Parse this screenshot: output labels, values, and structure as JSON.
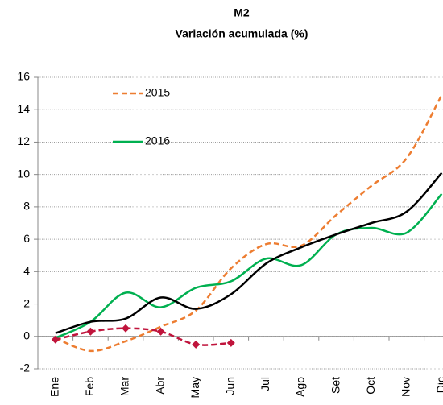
{
  "chart_data": {
    "type": "line",
    "title": "M2",
    "subtitle": "Variación acumulada (%)",
    "categories": [
      "Ene",
      "Feb",
      "Mar",
      "Abr",
      "May",
      "Jun",
      "Jul",
      "Ago",
      "Set",
      "Oct",
      "Nov",
      "Dic"
    ],
    "series": [
      {
        "name": "2015",
        "color": "#ed7d31",
        "dashed": true,
        "values": [
          -0.1,
          -0.9,
          -0.3,
          0.6,
          1.6,
          4.2,
          5.7,
          5.6,
          7.5,
          9.3,
          11.0,
          14.9
        ]
      },
      {
        "name": "2016",
        "color": "#00b050",
        "values": [
          -0.1,
          0.9,
          2.7,
          1.8,
          3.0,
          3.4,
          4.8,
          4.4,
          6.3,
          6.7,
          6.4,
          8.8
        ]
      },
      {
        "color": "#000000",
        "values": [
          0.2,
          0.9,
          1.1,
          2.4,
          1.7,
          2.6,
          4.5,
          5.5,
          6.3,
          7.0,
          7.7,
          10.1
        ]
      },
      {
        "color": "#c0143c",
        "dashed": true,
        "markers": true,
        "values": [
          -0.2,
          0.3,
          0.5,
          0.3,
          -0.5,
          -0.4,
          null,
          null,
          null,
          null,
          null,
          null
        ]
      }
    ],
    "ylim": [
      -2,
      16
    ],
    "yticks": [
      -2,
      0,
      2,
      4,
      6,
      8,
      10,
      12,
      14,
      16
    ],
    "grid": true,
    "legend": "upper left"
  }
}
